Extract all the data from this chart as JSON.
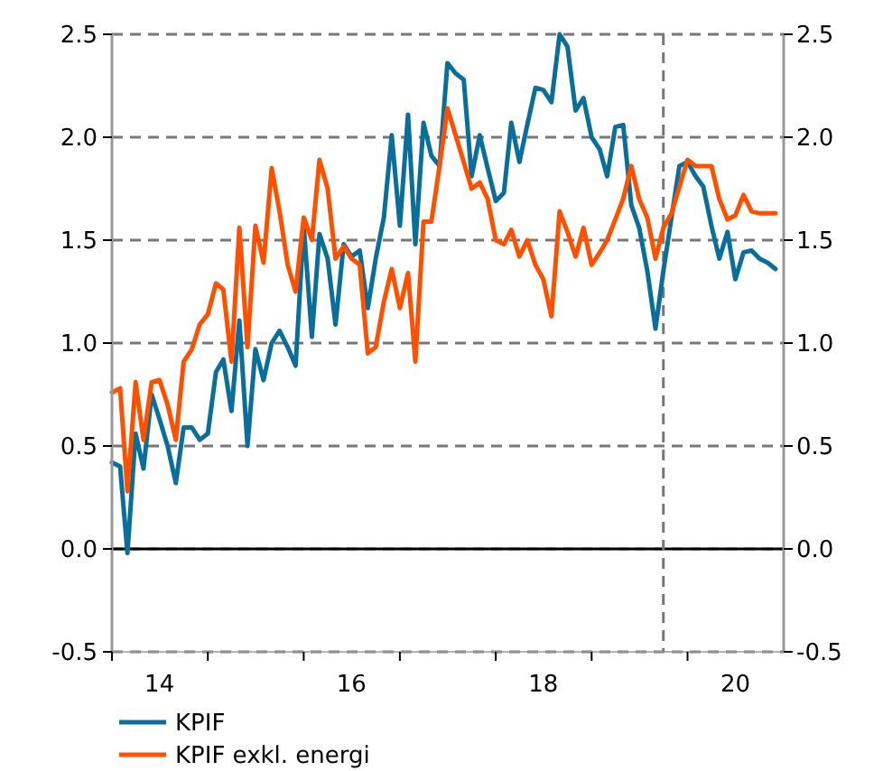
{
  "chart_data": {
    "type": "line",
    "x": [
      "2014-01",
      "2014-02",
      "2014-03",
      "2014-04",
      "2014-05",
      "2014-06",
      "2014-07",
      "2014-08",
      "2014-09",
      "2014-10",
      "2014-11",
      "2014-12",
      "2015-01",
      "2015-02",
      "2015-03",
      "2015-04",
      "2015-05",
      "2015-06",
      "2015-07",
      "2015-08",
      "2015-09",
      "2015-10",
      "2015-11",
      "2015-12",
      "2016-01",
      "2016-02",
      "2016-03",
      "2016-04",
      "2016-05",
      "2016-06",
      "2016-07",
      "2016-08",
      "2016-09",
      "2016-10",
      "2016-11",
      "2016-12",
      "2017-01",
      "2017-02",
      "2017-03",
      "2017-04",
      "2017-05",
      "2017-06",
      "2017-07",
      "2017-08",
      "2017-09",
      "2017-10",
      "2017-11",
      "2017-12",
      "2018-01",
      "2018-02",
      "2018-03",
      "2018-04",
      "2018-05",
      "2018-06",
      "2018-07",
      "2018-08",
      "2018-09",
      "2018-10",
      "2018-11",
      "2018-12",
      "2019-01",
      "2019-02",
      "2019-03",
      "2019-04",
      "2019-05",
      "2019-06",
      "2019-07",
      "2019-08",
      "2019-09",
      "2019-10",
      "2019-11",
      "2019-12",
      "2020-01",
      "2020-02",
      "2020-03",
      "2020-04",
      "2020-05",
      "2020-06",
      "2020-07",
      "2020-08",
      "2020-09",
      "2020-10",
      "2020-11",
      "2020-12"
    ],
    "series": [
      {
        "name": "KPIF",
        "color": "#0a6e9a",
        "values": [
          0.42,
          0.4,
          -0.02,
          0.56,
          0.39,
          0.75,
          0.63,
          0.5,
          0.32,
          0.59,
          0.59,
          0.53,
          0.56,
          0.86,
          0.92,
          0.67,
          1.11,
          0.5,
          0.97,
          0.82,
          1.0,
          1.06,
          0.98,
          0.89,
          1.57,
          1.03,
          1.53,
          1.41,
          1.09,
          1.48,
          1.42,
          1.45,
          1.17,
          1.41,
          1.61,
          2.01,
          1.57,
          2.11,
          1.48,
          2.07,
          1.91,
          1.86,
          2.36,
          2.31,
          2.28,
          1.81,
          2.01,
          1.85,
          1.69,
          1.73,
          2.07,
          1.88,
          2.06,
          2.24,
          2.23,
          2.17,
          2.5,
          2.44,
          2.13,
          2.19,
          2.0,
          1.94,
          1.81,
          2.05,
          2.06,
          1.67,
          1.56,
          1.35,
          1.07,
          1.35,
          1.61,
          1.86,
          1.88,
          1.81,
          1.76,
          1.57,
          1.41,
          1.54,
          1.31,
          1.44,
          1.45,
          1.41,
          1.39,
          1.36
        ]
      },
      {
        "name": "KPIF exkl. energi",
        "color": "#ff5000",
        "values": [
          0.76,
          0.78,
          0.28,
          0.81,
          0.53,
          0.81,
          0.82,
          0.7,
          0.53,
          0.91,
          0.97,
          1.09,
          1.14,
          1.29,
          1.26,
          0.91,
          1.56,
          0.98,
          1.57,
          1.39,
          1.85,
          1.64,
          1.38,
          1.25,
          1.61,
          1.5,
          1.89,
          1.75,
          1.41,
          1.47,
          1.41,
          1.38,
          0.95,
          0.98,
          1.2,
          1.36,
          1.17,
          1.34,
          0.91,
          1.59,
          1.59,
          1.86,
          2.14,
          2.01,
          1.88,
          1.75,
          1.78,
          1.7,
          1.5,
          1.48,
          1.55,
          1.42,
          1.5,
          1.38,
          1.31,
          1.13,
          1.64,
          1.54,
          1.42,
          1.56,
          1.38,
          1.44,
          1.5,
          1.6,
          1.7,
          1.86,
          1.7,
          1.61,
          1.41,
          1.56,
          1.63,
          1.76,
          1.89,
          1.86,
          1.86,
          1.86,
          1.7,
          1.6,
          1.62,
          1.72,
          1.64,
          1.63,
          1.63,
          1.63
        ]
      }
    ],
    "xlim": [
      "2014-01",
      "2021-01"
    ],
    "xticks": [
      {
        "value": "2014-01",
        "label": null
      },
      {
        "value": "2014-07",
        "label": "14"
      },
      {
        "value": "2015-01",
        "label": null
      },
      {
        "value": "2016-01",
        "label": null
      },
      {
        "value": "2016-07",
        "label": "16"
      },
      {
        "value": "2017-01",
        "label": null
      },
      {
        "value": "2018-01",
        "label": null
      },
      {
        "value": "2018-07",
        "label": "18"
      },
      {
        "value": "2019-01",
        "label": null
      },
      {
        "value": "2020-01",
        "label": null
      },
      {
        "value": "2020-07",
        "label": "20"
      }
    ],
    "ylim": [
      -0.5,
      2.5
    ],
    "yticks": [
      {
        "value": -0.5,
        "label": "-0.5"
      },
      {
        "value": 0,
        "label": "0.0"
      },
      {
        "value": 0.5,
        "label": "0.5"
      },
      {
        "value": 1,
        "label": "1.0"
      },
      {
        "value": 1.5,
        "label": "1.5"
      },
      {
        "value": 2,
        "label": "2.0"
      },
      {
        "value": 2.5,
        "label": "2.5"
      }
    ],
    "y2lim": [
      -0.5,
      2.5
    ],
    "y2ticks": [
      {
        "value": -0.5,
        "label": "-0.5"
      },
      {
        "value": 0,
        "label": "0.0"
      },
      {
        "value": 0.5,
        "label": "0.5"
      },
      {
        "value": 1,
        "label": "1.0"
      },
      {
        "value": 1.5,
        "label": "1.5"
      },
      {
        "value": 2,
        "label": "2.0"
      },
      {
        "value": 2.5,
        "label": "2.5"
      }
    ],
    "ref_lines": [
      {
        "axis": "y",
        "value": 0,
        "color": "#000000",
        "line_style": "solid"
      },
      {
        "axis": "x",
        "value": "2019-10",
        "color": "#777777",
        "line_style": "dashed"
      }
    ],
    "grid": "y",
    "legend": "bottom",
    "line_style": "solid",
    "marker": "none"
  }
}
